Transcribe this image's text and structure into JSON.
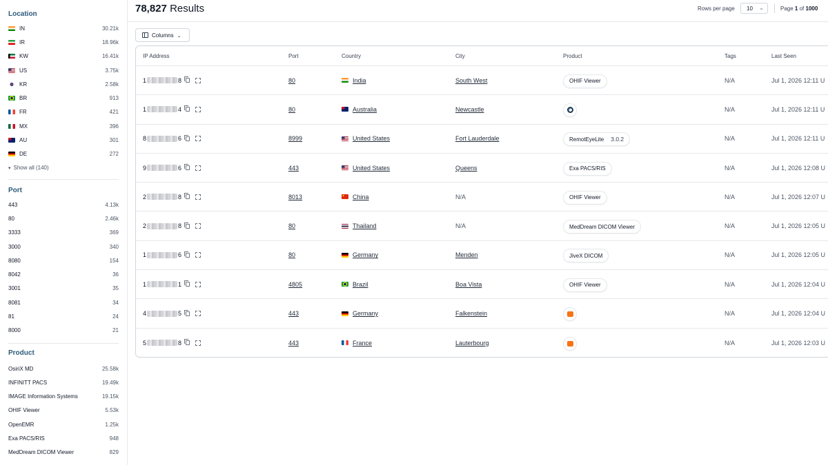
{
  "sidebar": {
    "location": {
      "title": "Location",
      "items": [
        {
          "code": "IN",
          "count": "30.21k",
          "flag": "in"
        },
        {
          "code": "IR",
          "count": "18.96k",
          "flag": "ir"
        },
        {
          "code": "KW",
          "count": "16.41k",
          "flag": "kw"
        },
        {
          "code": "US",
          "count": "3.75k",
          "flag": "us"
        },
        {
          "code": "KR",
          "count": "2.58k",
          "flag": "kr"
        },
        {
          "code": "BR",
          "count": "913",
          "flag": "br"
        },
        {
          "code": "FR",
          "count": "421",
          "flag": "fr"
        },
        {
          "code": "MX",
          "count": "396",
          "flag": "mx"
        },
        {
          "code": "AU",
          "count": "301",
          "flag": "au"
        },
        {
          "code": "DE",
          "count": "272",
          "flag": "de"
        }
      ],
      "show_all": "Show all (140)"
    },
    "port": {
      "title": "Port",
      "items": [
        {
          "label": "443",
          "count": "4.13k"
        },
        {
          "label": "80",
          "count": "2.46k"
        },
        {
          "label": "3333",
          "count": "369"
        },
        {
          "label": "3000",
          "count": "340"
        },
        {
          "label": "8080",
          "count": "154"
        },
        {
          "label": "8042",
          "count": "36"
        },
        {
          "label": "3001",
          "count": "35"
        },
        {
          "label": "8081",
          "count": "34"
        },
        {
          "label": "81",
          "count": "24"
        },
        {
          "label": "8000",
          "count": "21"
        }
      ]
    },
    "product": {
      "title": "Product",
      "items": [
        {
          "label": "OsiriX MD",
          "count": "25.58k"
        },
        {
          "label": "INFINITT PACS",
          "count": "19.49k"
        },
        {
          "label": "IMAGE Information Systems",
          "count": "19.15k"
        },
        {
          "label": "OHIF Viewer",
          "count": "5.53k"
        },
        {
          "label": "OpenEMR",
          "count": "1.25k"
        },
        {
          "label": "Exa PACS/RIS",
          "count": "948"
        },
        {
          "label": "MedDream DICOM Viewer",
          "count": "829"
        }
      ]
    }
  },
  "header": {
    "results_count": "78,827",
    "results_word": "Results",
    "rows_per_page_label": "Rows per page",
    "rows_per_page_value": "10",
    "page_word": "Page",
    "page_current": "1",
    "page_of": "of",
    "page_total": "1000"
  },
  "columns_button": "Columns",
  "table": {
    "headers": [
      "IP Address",
      "Port",
      "Country",
      "City",
      "Product",
      "Tags",
      "Last Seen"
    ],
    "rows": [
      {
        "ip_start": "1",
        "ip_end": "8",
        "port": "80",
        "country": "India",
        "flag": "in",
        "city": "South West",
        "product": "OHIF Viewer",
        "tags": "N/A",
        "last_seen": "Jul 1, 2026 12:11 U"
      },
      {
        "ip_start": "1",
        "ip_end": "4",
        "port": "80",
        "country": "Australia",
        "flag": "au",
        "city": "Newcastle",
        "product_icon": "eye-logo-icon",
        "tags": "N/A",
        "last_seen": "Jul 1, 2026 12:11 U"
      },
      {
        "ip_start": "8",
        "ip_end": "6",
        "port": "8999",
        "country": "United States",
        "flag": "us",
        "city": "Fort Lauderdale",
        "product": "RemotEyeLite",
        "version": "3.0.2",
        "tags": "N/A",
        "last_seen": "Jul 1, 2026 12:11 U"
      },
      {
        "ip_start": "9",
        "ip_end": "6",
        "port": "443",
        "country": "United States",
        "flag": "us",
        "city": "Queens",
        "product": "Exa PACS/RIS",
        "tags": "N/A",
        "last_seen": "Jul 1, 2026 12:08 U"
      },
      {
        "ip_start": "2",
        "ip_end": "8",
        "port": "8013",
        "country": "China",
        "flag": "cn",
        "city": "N/A",
        "city_na": true,
        "product": "OHIF Viewer",
        "tags": "N/A",
        "last_seen": "Jul 1, 2026 12:07 U"
      },
      {
        "ip_start": "2",
        "ip_end": "8",
        "port": "80",
        "country": "Thailand",
        "flag": "th",
        "city": "N/A",
        "city_na": true,
        "product": "MedDream DICOM Viewer",
        "tags": "N/A",
        "last_seen": "Jul 1, 2026 12:05 U"
      },
      {
        "ip_start": "1",
        "ip_end": "6",
        "port": "80",
        "country": "Germany",
        "flag": "de",
        "city": "Menden",
        "product": "JiveX DICOM",
        "tags": "N/A",
        "last_seen": "Jul 1, 2026 12:05 U"
      },
      {
        "ip_start": "1",
        "ip_end": "1",
        "port": "4805",
        "country": "Brazil",
        "flag": "br",
        "city": "Boa Vista",
        "product": "OHIF Viewer",
        "tags": "N/A",
        "last_seen": "Jul 1, 2026 12:04 U"
      },
      {
        "ip_start": "4",
        "ip_end": "5",
        "port": "443",
        "country": "Germany",
        "flag": "de",
        "city": "Falkenstein",
        "product_icon": "orange-logo-icon",
        "tags": "N/A",
        "last_seen": "Jul 1, 2026 12:04 U"
      },
      {
        "ip_start": "5",
        "ip_end": "8",
        "port": "443",
        "country": "France",
        "flag": "fr",
        "city": "Lauterbourg",
        "product_icon": "orange-logo-icon",
        "tags": "N/A",
        "last_seen": "Jul 1, 2026 12:03 U"
      }
    ]
  }
}
